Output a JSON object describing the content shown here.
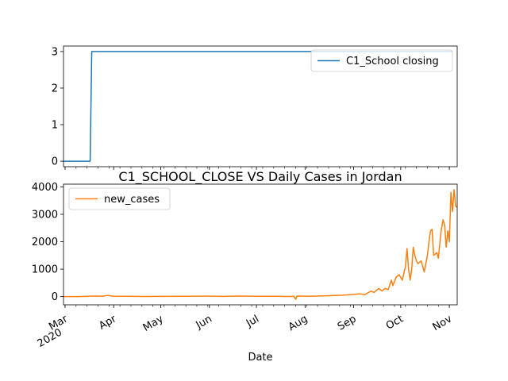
{
  "chart_data": [
    {
      "type": "line",
      "title": "",
      "xlabel": "",
      "ylabel": "",
      "ylim": [
        -0.15,
        3.15
      ],
      "yticks": [
        0,
        1,
        2,
        3
      ],
      "legend": "top-right",
      "series": [
        {
          "name": "C1_School closing",
          "color": "#1f77b4",
          "points": [
            [
              "2020-02-29",
              0
            ],
            [
              "2020-03-17",
              0
            ],
            [
              "2020-03-18",
              3
            ],
            [
              "2020-11-03",
              3
            ]
          ]
        }
      ]
    },
    {
      "type": "line",
      "title": "C1_SCHOOL_CLOSE VS Daily Cases in Jordan",
      "xlabel": "Date",
      "ylabel": "",
      "ylim": [
        -300,
        4100
      ],
      "yticks": [
        0,
        1000,
        2000,
        3000,
        4000
      ],
      "legend": "top-left",
      "series": [
        {
          "name": "new_cases",
          "color": "#ff7f0e",
          "points": [
            [
              "2020-02-29",
              0
            ],
            [
              "2020-03-10",
              1
            ],
            [
              "2020-03-20",
              20
            ],
            [
              "2020-03-25",
              15
            ],
            [
              "2020-03-28",
              40
            ],
            [
              "2020-04-01",
              15
            ],
            [
              "2020-04-10",
              10
            ],
            [
              "2020-04-20",
              5
            ],
            [
              "2020-05-01",
              8
            ],
            [
              "2020-05-15",
              12
            ],
            [
              "2020-06-01",
              15
            ],
            [
              "2020-06-10",
              8
            ],
            [
              "2020-06-20",
              20
            ],
            [
              "2020-07-01",
              10
            ],
            [
              "2020-07-15",
              12
            ],
            [
              "2020-07-20",
              5
            ],
            [
              "2020-07-25",
              8
            ],
            [
              "2020-07-26",
              -100
            ],
            [
              "2020-07-27",
              20
            ],
            [
              "2020-08-05",
              10
            ],
            [
              "2020-08-15",
              30
            ],
            [
              "2020-08-25",
              50
            ],
            [
              "2020-09-01",
              80
            ],
            [
              "2020-09-05",
              100
            ],
            [
              "2020-09-08",
              70
            ],
            [
              "2020-09-12",
              200
            ],
            [
              "2020-09-14",
              150
            ],
            [
              "2020-09-17",
              300
            ],
            [
              "2020-09-19",
              200
            ],
            [
              "2020-09-21",
              300
            ],
            [
              "2020-09-23",
              250
            ],
            [
              "2020-09-25",
              600
            ],
            [
              "2020-09-26",
              400
            ],
            [
              "2020-09-28",
              700
            ],
            [
              "2020-09-30",
              800
            ],
            [
              "2020-10-02",
              600
            ],
            [
              "2020-10-04",
              1100
            ],
            [
              "2020-10-05",
              1750
            ],
            [
              "2020-10-06",
              1000
            ],
            [
              "2020-10-07",
              600
            ],
            [
              "2020-10-08",
              1000
            ],
            [
              "2020-10-09",
              1800
            ],
            [
              "2020-10-10",
              1500
            ],
            [
              "2020-10-11",
              1300
            ],
            [
              "2020-10-12",
              1200
            ],
            [
              "2020-10-14",
              1300
            ],
            [
              "2020-10-16",
              900
            ],
            [
              "2020-10-18",
              1500
            ],
            [
              "2020-10-19",
              2000
            ],
            [
              "2020-10-20",
              2400
            ],
            [
              "2020-10-21",
              2450
            ],
            [
              "2020-10-22",
              1500
            ],
            [
              "2020-10-24",
              1600
            ],
            [
              "2020-10-25",
              1400
            ],
            [
              "2020-10-26",
              2000
            ],
            [
              "2020-10-27",
              2500
            ],
            [
              "2020-10-28",
              2800
            ],
            [
              "2020-10-29",
              2600
            ],
            [
              "2020-10-30",
              1800
            ],
            [
              "2020-10-31",
              2400
            ],
            [
              "2020-11-01",
              2000
            ],
            [
              "2020-11-02",
              3800
            ],
            [
              "2020-11-03",
              3100
            ],
            [
              "2020-11-04",
              3900
            ],
            [
              "2020-11-05",
              3300
            ],
            [
              "2020-11-06",
              3250
            ]
          ]
        }
      ]
    }
  ],
  "x_axis": {
    "label": "Date",
    "range": [
      "2020-02-29",
      "2020-11-06"
    ],
    "ticks": [
      {
        "date": "2020-03-01",
        "label": "Mar",
        "sublabel": "2020"
      },
      {
        "date": "2020-04-01",
        "label": "Apr"
      },
      {
        "date": "2020-05-01",
        "label": "May"
      },
      {
        "date": "2020-06-01",
        "label": "Jun"
      },
      {
        "date": "2020-07-01",
        "label": "Jul"
      },
      {
        "date": "2020-08-01",
        "label": "Aug"
      },
      {
        "date": "2020-09-01",
        "label": "Sep"
      },
      {
        "date": "2020-10-01",
        "label": "Oct"
      },
      {
        "date": "2020-11-01",
        "label": "Nov"
      }
    ]
  }
}
